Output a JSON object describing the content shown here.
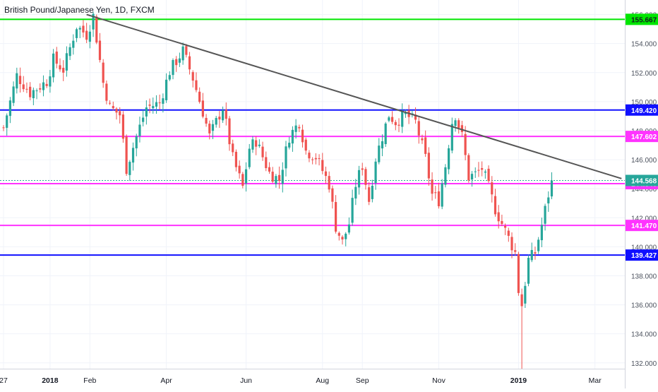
{
  "symbol_title": "British Pound/Japanese Yen, 1D, FXCM",
  "colors": {
    "up": "#26a69a",
    "down": "#ef5350",
    "grid": "#f0f3fa",
    "axis_text": "#4c525e",
    "trendline": "#555555",
    "green_level": "#00e600",
    "blue_level": "#1010ff",
    "magenta_level": "#ff33ff",
    "last_price": "#26a69a"
  },
  "chart_data": {
    "type": "candlestick",
    "title": "British Pound/Japanese Yen, 1D, FXCM",
    "ylim": [
      131.6,
      157.0
    ],
    "y_ticks": [
      "132.000",
      "134.000",
      "136.000",
      "138.000",
      "140.000",
      "142.000",
      "144.000",
      "146.000",
      "148.000",
      "150.000",
      "152.000",
      "154.000",
      "156.000"
    ],
    "x_ticks": [
      {
        "label": "27",
        "bar": 0
      },
      {
        "label": "2018",
        "bar": 14
      },
      {
        "label": "Feb",
        "bar": 26
      },
      {
        "label": "Apr",
        "bar": 49
      },
      {
        "label": "Jun",
        "bar": 73
      },
      {
        "label": "Aug",
        "bar": 96
      },
      {
        "label": "Sep",
        "bar": 108
      },
      {
        "label": "Nov",
        "bar": 131
      },
      {
        "label": "2019",
        "bar": 155
      },
      {
        "label": "Mar",
        "bar": 178
      }
    ],
    "bar_count": 186,
    "anchors": [
      [
        0,
        148.2
      ],
      [
        4,
        151.8
      ],
      [
        8,
        150.6
      ],
      [
        10,
        150.9
      ],
      [
        13,
        151.4
      ],
      [
        15,
        152.9
      ],
      [
        18,
        152.2
      ],
      [
        22,
        155.2
      ],
      [
        25,
        154.6
      ],
      [
        27,
        155.9
      ],
      [
        30,
        151.3
      ],
      [
        32,
        149.6
      ],
      [
        35,
        149.1
      ],
      [
        37,
        145.4
      ],
      [
        40,
        147.6
      ],
      [
        43,
        149.6
      ],
      [
        47,
        149.9
      ],
      [
        50,
        152.1
      ],
      [
        54,
        153.5
      ],
      [
        57,
        151.6
      ],
      [
        60,
        149.3
      ],
      [
        62,
        147.6
      ],
      [
        66,
        149.6
      ],
      [
        69,
        146.1
      ],
      [
        72,
        144.1
      ],
      [
        74,
        146.8
      ],
      [
        76,
        147.3
      ],
      [
        80,
        145.1
      ],
      [
        83,
        144.6
      ],
      [
        86,
        147.6
      ],
      [
        89,
        148.6
      ],
      [
        91,
        146.6
      ],
      [
        94,
        146.2
      ],
      [
        98,
        144.3
      ],
      [
        100,
        141.4
      ],
      [
        102,
        140.3
      ],
      [
        104,
        141.6
      ],
      [
        106,
        144.3
      ],
      [
        108,
        145.6
      ],
      [
        110,
        143.2
      ],
      [
        112,
        146.1
      ],
      [
        114,
        147.6
      ],
      [
        116,
        149.1
      ],
      [
        118,
        148.6
      ],
      [
        121,
        149.1
      ],
      [
        124,
        148.6
      ],
      [
        127,
        146.1
      ],
      [
        129,
        143.6
      ],
      [
        131,
        143.2
      ],
      [
        133,
        145.6
      ],
      [
        135,
        148.6
      ],
      [
        136,
        149.1
      ],
      [
        138,
        147.6
      ],
      [
        140,
        144.8
      ],
      [
        142,
        145.0
      ],
      [
        144,
        145.4
      ],
      [
        146,
        144.1
      ],
      [
        148,
        142.6
      ],
      [
        150,
        141.6
      ],
      [
        152,
        140.6
      ],
      [
        154,
        139.6
      ],
      [
        155,
        137.0
      ],
      [
        156,
        136.0
      ],
      [
        158,
        139.1
      ],
      [
        160,
        139.6
      ],
      [
        162,
        141.5
      ],
      [
        164,
        143.6
      ],
      [
        165,
        144.568
      ]
    ],
    "levels": [
      {
        "label": "155.667",
        "value": 155.667,
        "color_key": "green_level"
      },
      {
        "label": "149.420",
        "value": 149.42,
        "color_key": "blue_level"
      },
      {
        "label": "147.602",
        "value": 147.602,
        "color_key": "magenta_level"
      },
      {
        "label": "144.346",
        "value": 144.346,
        "color_key": "magenta_level"
      },
      {
        "label": "141.470",
        "value": 141.47,
        "color_key": "magenta_level"
      },
      {
        "label": "139.427",
        "value": 139.427,
        "color_key": "blue_level"
      }
    ],
    "last_price": {
      "label": "144.568",
      "value": 144.568
    },
    "trendline": {
      "start": {
        "bar": 25,
        "value": 156.0
      },
      "end": {
        "bar": 186,
        "value": 144.7
      }
    },
    "wick_extremes": [
      {
        "bar": 156,
        "low": 131.6
      },
      {
        "bar": 27,
        "high": 156.2
      }
    ]
  }
}
